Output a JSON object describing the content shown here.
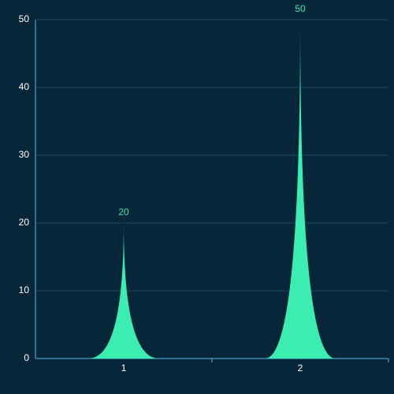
{
  "chart_data": {
    "type": "spike-bar",
    "categories": [
      "1",
      "2"
    ],
    "values": [
      20,
      50
    ],
    "color": "#3cedb1",
    "ylim": [
      0,
      50
    ],
    "yticks": [
      0,
      10,
      20,
      30,
      40,
      50
    ],
    "grid": true
  }
}
